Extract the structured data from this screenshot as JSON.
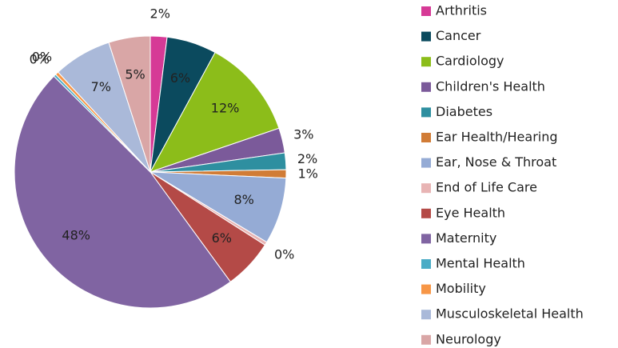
{
  "chart_data": {
    "type": "pie",
    "categories": [
      "Arthritis",
      "Cancer",
      "Cardiology",
      "Children's Health",
      "Diabetes",
      "Ear Health/Hearing",
      "Ear, Nose & Throat",
      "End of Life Care",
      "Eye Health",
      "Maternity",
      "Mental Health",
      "Mobility",
      "Musculoskeletal Health",
      "Neurology"
    ],
    "values": [
      2,
      6,
      12,
      3,
      2,
      1,
      8,
      0.4,
      6,
      48,
      0.3,
      0.4,
      7,
      5
    ],
    "value_labels": [
      "2%",
      "6%",
      "12%",
      "3%",
      "2%",
      "1%",
      "8%",
      "0%",
      "6%",
      "48%",
      "0%",
      "0%",
      "7%",
      "5%"
    ],
    "colors": [
      "#d63a96",
      "#0b4a5e",
      "#8cbd1a",
      "#7b5a9a",
      "#2e8fa0",
      "#d17c36",
      "#95abd5",
      "#e8b4b4",
      "#b44a47",
      "#8064a2",
      "#4bacc6",
      "#f79646",
      "#aab9d9",
      "#d9a6a6"
    ],
    "legend": "right"
  }
}
